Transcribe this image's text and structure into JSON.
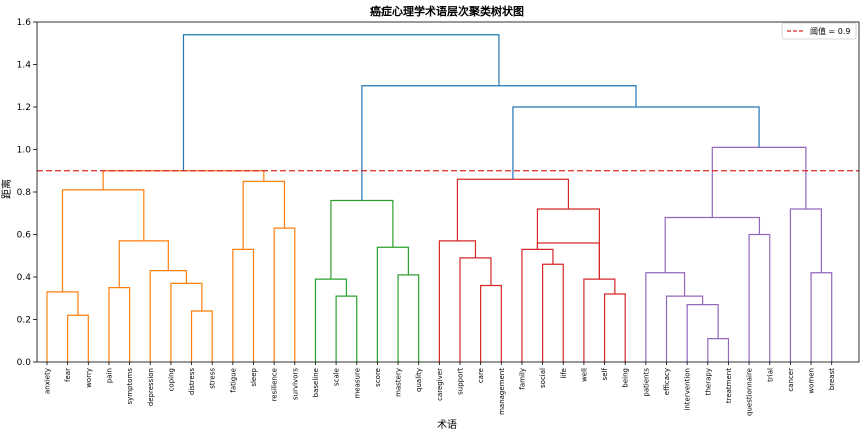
{
  "chart_data": {
    "type": "dendrogram",
    "title": "癌症心理学术语层次聚类树状图",
    "xlabel": "术语",
    "ylabel": "距离",
    "ylim": [
      0,
      1.6
    ],
    "yticks": [
      0.0,
      0.2,
      0.4,
      0.6,
      0.8,
      1.0,
      1.2,
      1.4,
      1.6
    ],
    "threshold": 0.9,
    "legend": {
      "label": "阈值 = 0.9",
      "placement": "top-right"
    },
    "grid": false,
    "leaves": [
      "anxiety",
      "fear",
      "worry",
      "pain",
      "symptoms",
      "depression",
      "coping",
      "distress",
      "stress",
      "fatigue",
      "sleep",
      "resilience",
      "survivors",
      "baseline",
      "scale",
      "measure",
      "score",
      "mastery",
      "quality",
      "caregiver",
      "support",
      "care",
      "management",
      "family",
      "social",
      "life",
      "well",
      "self",
      "being",
      "patients",
      "efficacy",
      "intervention",
      "therapy",
      "treatment",
      "questionnaire",
      "trial",
      "cancer",
      "women",
      "breast"
    ],
    "colors": {
      "orange": "#ff7f0e",
      "green": "#2ca02c",
      "red": "#d62728",
      "purple": "#9467bd",
      "blue": "#1f77b4",
      "threshold": "#d62728"
    },
    "merges": [
      {
        "children": [
          "leaf:1",
          "leaf:2"
        ],
        "height": 0.22,
        "color": "orange"
      },
      {
        "children": [
          "leaf:0",
          "m:0"
        ],
        "height": 0.33,
        "color": "orange"
      },
      {
        "children": [
          "leaf:3",
          "leaf:4"
        ],
        "height": 0.35,
        "color": "orange"
      },
      {
        "children": [
          "leaf:7",
          "leaf:8"
        ],
        "height": 0.24,
        "color": "orange"
      },
      {
        "children": [
          "leaf:6",
          "m:3"
        ],
        "height": 0.37,
        "color": "orange"
      },
      {
        "children": [
          "leaf:5",
          "m:4"
        ],
        "height": 0.43,
        "color": "orange"
      },
      {
        "children": [
          "m:2",
          "m:5"
        ],
        "height": 0.57,
        "color": "orange"
      },
      {
        "children": [
          "m:1",
          "m:6"
        ],
        "height": 0.81,
        "color": "orange"
      },
      {
        "children": [
          "leaf:9",
          "leaf:10"
        ],
        "height": 0.53,
        "color": "orange"
      },
      {
        "children": [
          "leaf:11",
          "leaf:12"
        ],
        "height": 0.63,
        "color": "orange"
      },
      {
        "children": [
          "m:8",
          "m:9"
        ],
        "height": 0.85,
        "color": "orange"
      },
      {
        "children": [
          "m:7",
          "m:10"
        ],
        "height": 0.9,
        "color": "orange"
      },
      {
        "children": [
          "leaf:14",
          "leaf:15"
        ],
        "height": 0.31,
        "color": "green"
      },
      {
        "children": [
          "leaf:13",
          "m:12"
        ],
        "height": 0.39,
        "color": "green"
      },
      {
        "children": [
          "leaf:17",
          "leaf:18"
        ],
        "height": 0.41,
        "color": "green"
      },
      {
        "children": [
          "leaf:16",
          "m:14"
        ],
        "height": 0.54,
        "color": "green"
      },
      {
        "children": [
          "m:13",
          "m:15"
        ],
        "height": 0.76,
        "color": "green"
      },
      {
        "children": [
          "leaf:21",
          "leaf:22"
        ],
        "height": 0.36,
        "color": "red"
      },
      {
        "children": [
          "leaf:20",
          "m:17"
        ],
        "height": 0.49,
        "color": "red"
      },
      {
        "children": [
          "leaf:19",
          "m:18"
        ],
        "height": 0.57,
        "color": "red"
      },
      {
        "children": [
          "leaf:24",
          "leaf:25"
        ],
        "height": 0.46,
        "color": "red"
      },
      {
        "children": [
          "leaf:23",
          "m:20"
        ],
        "height": 0.53,
        "color": "red"
      },
      {
        "children": [
          "leaf:27",
          "leaf:28"
        ],
        "height": 0.32,
        "color": "red"
      },
      {
        "children": [
          "leaf:26",
          "m:22"
        ],
        "height": 0.39,
        "color": "red"
      },
      {
        "children": [
          "m:21",
          "m:23"
        ],
        "height": 0.56,
        "color": "red"
      },
      {
        "children": [
          "m:24"
        ],
        "height": 0.56,
        "color": "red",
        "note": ""
      },
      {
        "children": [
          "m:21",
          "m:23"
        ],
        "height": 0.72,
        "color": "red"
      },
      {
        "children": [
          "m:19",
          "m:26"
        ],
        "height": 0.86,
        "color": "red"
      },
      {
        "children": [
          "leaf:32",
          "leaf:33"
        ],
        "height": 0.11,
        "color": "purple"
      },
      {
        "children": [
          "leaf:31",
          "m:28"
        ],
        "height": 0.27,
        "color": "purple"
      },
      {
        "children": [
          "leaf:30",
          "m:29"
        ],
        "height": 0.31,
        "color": "purple"
      },
      {
        "children": [
          "leaf:29",
          "m:30"
        ],
        "height": 0.42,
        "color": "purple"
      },
      {
        "children": [
          "leaf:34",
          "leaf:35"
        ],
        "height": 0.6,
        "color": "purple"
      },
      {
        "children": [
          "m:31",
          "m:32"
        ],
        "height": 0.68,
        "color": "purple"
      },
      {
        "children": [
          "leaf:37",
          "leaf:38"
        ],
        "height": 0.42,
        "color": "purple"
      },
      {
        "children": [
          "leaf:36",
          "m:34"
        ],
        "height": 0.72,
        "color": "purple"
      },
      {
        "children": [
          "m:33",
          "m:35"
        ],
        "height": 1.01,
        "color": "purple"
      },
      {
        "children": [
          "m:27",
          "m:36"
        ],
        "height": 1.2,
        "color": "blue"
      },
      {
        "children": [
          "m:16",
          "m:37"
        ],
        "height": 1.3,
        "color": "blue"
      },
      {
        "children": [
          "m:11",
          "m:38"
        ],
        "height": 1.54,
        "color": "blue"
      }
    ]
  }
}
